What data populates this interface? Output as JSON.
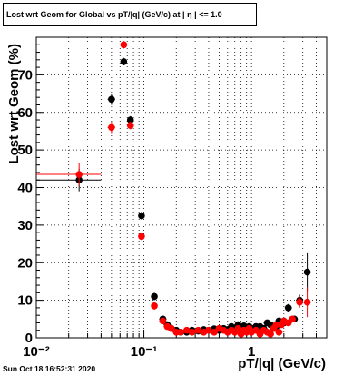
{
  "title": "Lost wrt Geom for Global vs pT/|q| (GeV/c) at | η | <= 1.0",
  "footer": "Sun Oct 18 16:52:31 2020",
  "chart_data": {
    "type": "scatter",
    "xlabel": "pT/|q| (GeV/c)",
    "ylabel": "Lost wrt Geom (%)",
    "xscale": "log",
    "xlim": [
      0.01,
      5.0
    ],
    "ylim": [
      0,
      80
    ],
    "grid": true,
    "x_tick_labels": [
      "10⁻²",
      "10⁻¹",
      "1"
    ],
    "y_tick_labels": [
      "0",
      "10",
      "20",
      "30",
      "40",
      "50",
      "60",
      "70"
    ],
    "colors": {
      "black": "#000000",
      "red": "#ff0000"
    },
    "series": [
      {
        "color": "black",
        "points": [
          {
            "x": 0.025,
            "y": 42.0,
            "xlo": 0.01,
            "xhi": 0.04,
            "yerr": 3.0
          },
          {
            "x": 0.05,
            "y": 63.5,
            "xerr": 0.004,
            "yerr": 1.5
          },
          {
            "x": 0.065,
            "y": 73.5,
            "xerr": 0.004,
            "yerr": 1.0
          },
          {
            "x": 0.075,
            "y": 58.0,
            "xerr": 0.004,
            "yerr": 1.0
          },
          {
            "x": 0.095,
            "y": 32.5,
            "xerr": 0.006,
            "yerr": 1.0
          },
          {
            "x": 0.125,
            "y": 11.0,
            "xerr": 0.007,
            "yerr": 1.0
          },
          {
            "x": 0.15,
            "y": 5.0
          },
          {
            "x": 0.165,
            "y": 3.5
          },
          {
            "x": 0.18,
            "y": 2.5
          },
          {
            "x": 0.2,
            "y": 2.0
          },
          {
            "x": 0.22,
            "y": 1.5
          },
          {
            "x": 0.25,
            "y": 1.5
          },
          {
            "x": 0.28,
            "y": 2.0
          },
          {
            "x": 0.32,
            "y": 1.8
          },
          {
            "x": 0.36,
            "y": 2.2
          },
          {
            "x": 0.4,
            "y": 2.0
          },
          {
            "x": 0.45,
            "y": 2.4
          },
          {
            "x": 0.5,
            "y": 2.0
          },
          {
            "x": 0.55,
            "y": 2.5
          },
          {
            "x": 0.6,
            "y": 2.2
          },
          {
            "x": 0.65,
            "y": 3.0
          },
          {
            "x": 0.7,
            "y": 2.5
          },
          {
            "x": 0.75,
            "y": 3.5
          },
          {
            "x": 0.8,
            "y": 2.8
          },
          {
            "x": 0.85,
            "y": 3.2
          },
          {
            "x": 0.9,
            "y": 2.5
          },
          {
            "x": 0.95,
            "y": 3.0
          },
          {
            "x": 1.0,
            "y": 2.5
          },
          {
            "x": 1.1,
            "y": 3.0
          },
          {
            "x": 1.2,
            "y": 3.0
          },
          {
            "x": 1.3,
            "y": 2.5
          },
          {
            "x": 1.4,
            "y": 4.0
          },
          {
            "x": 1.5,
            "y": 3.5
          },
          {
            "x": 1.6,
            "y": 2.5
          },
          {
            "x": 1.7,
            "y": 3.0
          },
          {
            "x": 1.8,
            "y": 4.5
          },
          {
            "x": 2.0,
            "y": 4.0
          },
          {
            "x": 2.2,
            "y": 8.0,
            "yerr": 1.0
          },
          {
            "x": 2.5,
            "y": 5.0
          },
          {
            "x": 2.8,
            "y": 10.0,
            "yerr": 1.5
          },
          {
            "x": 3.3,
            "y": 17.5,
            "yerr": 5.0
          }
        ]
      },
      {
        "color": "red",
        "points": [
          {
            "x": 0.025,
            "y": 43.5,
            "xlo": 0.01,
            "xhi": 0.04,
            "yerr": 3.0
          },
          {
            "x": 0.05,
            "y": 56.0,
            "xerr": 0.004,
            "yerr": 1.5
          },
          {
            "x": 0.065,
            "y": 78.0,
            "xerr": 0.004,
            "yerr": 1.0
          },
          {
            "x": 0.075,
            "y": 56.5,
            "xerr": 0.004,
            "yerr": 1.0
          },
          {
            "x": 0.095,
            "y": 27.0,
            "xerr": 0.006,
            "yerr": 1.0
          },
          {
            "x": 0.125,
            "y": 8.5,
            "xerr": 0.007,
            "yerr": 1.0
          },
          {
            "x": 0.15,
            "y": 4.5
          },
          {
            "x": 0.165,
            "y": 3.0
          },
          {
            "x": 0.18,
            "y": 2.5
          },
          {
            "x": 0.2,
            "y": 1.5
          },
          {
            "x": 0.22,
            "y": 1.5
          },
          {
            "x": 0.25,
            "y": 2.0
          },
          {
            "x": 0.28,
            "y": 1.5
          },
          {
            "x": 0.32,
            "y": 2.0
          },
          {
            "x": 0.36,
            "y": 1.5
          },
          {
            "x": 0.4,
            "y": 2.0
          },
          {
            "x": 0.45,
            "y": 1.5
          },
          {
            "x": 0.5,
            "y": 2.5
          },
          {
            "x": 0.55,
            "y": 2.0
          },
          {
            "x": 0.6,
            "y": 1.5
          },
          {
            "x": 0.65,
            "y": 2.0
          },
          {
            "x": 0.7,
            "y": 1.5
          },
          {
            "x": 0.75,
            "y": 2.5
          },
          {
            "x": 0.8,
            "y": 1.0
          },
          {
            "x": 0.85,
            "y": 2.0
          },
          {
            "x": 0.9,
            "y": 1.5
          },
          {
            "x": 0.95,
            "y": 2.5
          },
          {
            "x": 1.0,
            "y": 1.5
          },
          {
            "x": 1.1,
            "y": 2.0
          },
          {
            "x": 1.2,
            "y": 1.0
          },
          {
            "x": 1.3,
            "y": 2.0
          },
          {
            "x": 1.4,
            "y": 1.5
          },
          {
            "x": 1.5,
            "y": 1.0
          },
          {
            "x": 1.6,
            "y": 2.5
          },
          {
            "x": 1.7,
            "y": 3.5
          },
          {
            "x": 1.8,
            "y": 1.5
          },
          {
            "x": 1.9,
            "y": 3.5
          },
          {
            "x": 2.0,
            "y": 4.5
          },
          {
            "x": 2.2,
            "y": 4.0
          },
          {
            "x": 2.4,
            "y": 5.0
          },
          {
            "x": 2.8,
            "y": 9.5,
            "yerr": 1.5
          },
          {
            "x": 3.3,
            "y": 9.5,
            "yerr": 4.0
          }
        ]
      }
    ]
  }
}
